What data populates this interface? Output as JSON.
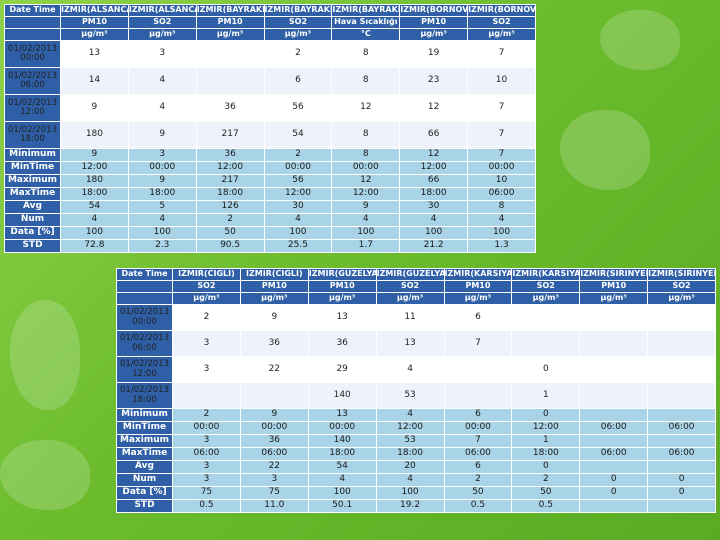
{
  "table1": {
    "header_row1": [
      "Date Time",
      "IZMIR(ALSANCAK)",
      "IZMIR(ALSANCAK)",
      "IZMIR(BAYRAKLI)",
      "IZMIR(BAYRAKLI)",
      "IZMIR(BAYRAKLI)",
      "IZMIR(BORNOVA)",
      "IZMIR(BORNOVA)"
    ],
    "header_row2": [
      "",
      "PM10",
      "SO2",
      "PM10",
      "SO2",
      "Hava Sıcaklığı",
      "PM10",
      "SO2"
    ],
    "header_row3": [
      "",
      "µg/m³",
      "µg/m³",
      "µg/m³",
      "µg/m³",
      "°C",
      "µg/m³",
      "µg/m³"
    ],
    "rows": [
      {
        "time": "01/02/2013 00:00",
        "vals": [
          "13",
          "3",
          "",
          "2",
          "8",
          "19",
          "7"
        ]
      },
      {
        "time": "01/02/2013 06:00",
        "vals": [
          "14",
          "4",
          "",
          "6",
          "8",
          "23",
          "10"
        ]
      },
      {
        "time": "01/02/2013 12:00",
        "vals": [
          "9",
          "4",
          "36",
          "56",
          "12",
          "12",
          "7"
        ]
      },
      {
        "time": "01/02/2013 18:00",
        "vals": [
          "180",
          "9",
          "217",
          "54",
          "8",
          "66",
          "7"
        ]
      }
    ],
    "stats": [
      {
        "label": "Minimum",
        "vals": [
          "9",
          "3",
          "36",
          "2",
          "8",
          "12",
          "7"
        ]
      },
      {
        "label": "MinTime",
        "vals": [
          "12:00",
          "00:00",
          "12:00",
          "00:00",
          "00:00",
          "12:00",
          "00:00"
        ]
      },
      {
        "label": "Maximum",
        "vals": [
          "180",
          "9",
          "217",
          "56",
          "12",
          "66",
          "10"
        ]
      },
      {
        "label": "MaxTime",
        "vals": [
          "18:00",
          "18:00",
          "18:00",
          "12:00",
          "12:00",
          "18:00",
          "06:00"
        ]
      },
      {
        "label": "Avg",
        "vals": [
          "54",
          "5",
          "126",
          "30",
          "9",
          "30",
          "8"
        ]
      },
      {
        "label": "Num",
        "vals": [
          "4",
          "4",
          "2",
          "4",
          "4",
          "4",
          "4"
        ]
      },
      {
        "label": "Data [%]",
        "vals": [
          "100",
          "100",
          "50",
          "100",
          "100",
          "100",
          "100"
        ]
      },
      {
        "label": "STD",
        "vals": [
          "72.8",
          "2.3",
          "90.5",
          "25.5",
          "1.7",
          "21.2",
          "1.3"
        ]
      }
    ]
  },
  "table2": {
    "header_row1": [
      "Date Time",
      "IZMIR(CIGLI)",
      "IZMIR(CIGLI)",
      "IZMIR(GUZELYALI)",
      "IZMIR(GUZELYALI)",
      "IZMIR(KARSIYAKA)",
      "IZMIR(KARSIYAKA)",
      "IZMIR(SIRINYER)",
      "IZMIR(SIRINYER)"
    ],
    "header_row2": [
      "",
      "SO2",
      "PM10",
      "PM10",
      "SO2",
      "PM10",
      "SO2",
      "PM10",
      "SO2"
    ],
    "header_row3": [
      "",
      "µg/m³",
      "µg/m³",
      "µg/m³",
      "µg/m³",
      "µg/m³",
      "µg/m³",
      "µg/m³",
      "µg/m³"
    ],
    "rows": [
      {
        "time": "01/02/2013 00:00",
        "vals": [
          "2",
          "9",
          "13",
          "11",
          "6",
          "",
          "",
          ""
        ]
      },
      {
        "time": "01/02/2013 06:00",
        "vals": [
          "3",
          "36",
          "36",
          "13",
          "7",
          "",
          "",
          ""
        ]
      },
      {
        "time": "01/02/2013 12:00",
        "vals": [
          "3",
          "22",
          "29",
          "4",
          "",
          "0",
          "",
          ""
        ]
      },
      {
        "time": "01/02/2013 18:00",
        "vals": [
          "",
          "",
          "140",
          "53",
          "",
          "1",
          "",
          ""
        ]
      }
    ],
    "stats": [
      {
        "label": "Minimum",
        "vals": [
          "2",
          "9",
          "13",
          "4",
          "6",
          "0",
          "",
          ""
        ]
      },
      {
        "label": "MinTime",
        "vals": [
          "00:00",
          "00:00",
          "00:00",
          "12:00",
          "00:00",
          "12:00",
          "06:00",
          "06:00"
        ]
      },
      {
        "label": "Maximum",
        "vals": [
          "3",
          "36",
          "140",
          "53",
          "7",
          "1",
          "",
          ""
        ]
      },
      {
        "label": "MaxTime",
        "vals": [
          "06:00",
          "06:00",
          "18:00",
          "18:00",
          "06:00",
          "18:00",
          "06:00",
          "06:00"
        ]
      },
      {
        "label": "Avg",
        "vals": [
          "3",
          "22",
          "54",
          "20",
          "6",
          "0",
          "",
          ""
        ]
      },
      {
        "label": "Num",
        "vals": [
          "3",
          "3",
          "4",
          "4",
          "2",
          "2",
          "0",
          "0"
        ]
      },
      {
        "label": "Data [%]",
        "vals": [
          "75",
          "75",
          "100",
          "100",
          "50",
          "50",
          "0",
          "0"
        ]
      },
      {
        "label": "STD",
        "vals": [
          "0.5",
          "11.0",
          "50.1",
          "19.2",
          "0.5",
          "0.5",
          "",
          ""
        ]
      }
    ]
  }
}
